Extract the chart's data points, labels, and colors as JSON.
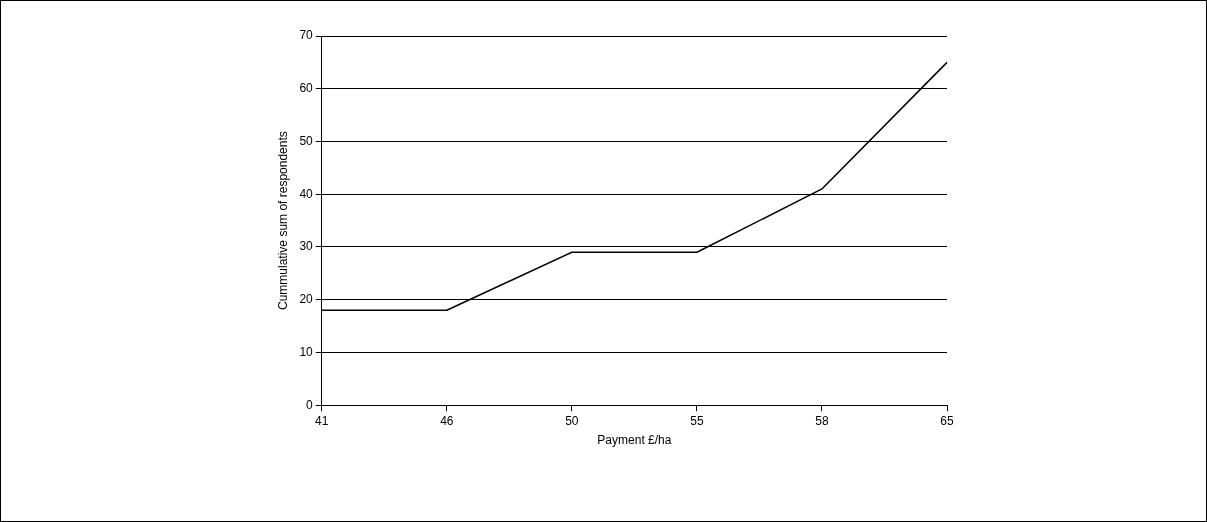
{
  "chart_data": {
    "type": "line",
    "xlabel": "Payment £/ha",
    "ylabel": "Cummulative sum of respondents",
    "categories": [
      "41",
      "46",
      "50",
      "55",
      "58",
      "65"
    ],
    "series": [
      {
        "color": "#000000",
        "values": [
          18,
          18,
          29,
          29,
          41,
          65
        ]
      }
    ],
    "ylim": [
      0,
      70
    ],
    "yticks": [
      0,
      10,
      20,
      30,
      40,
      50,
      60,
      70
    ],
    "grid": "y",
    "legend": false,
    "marker": "none",
    "line_style": "solid"
  }
}
